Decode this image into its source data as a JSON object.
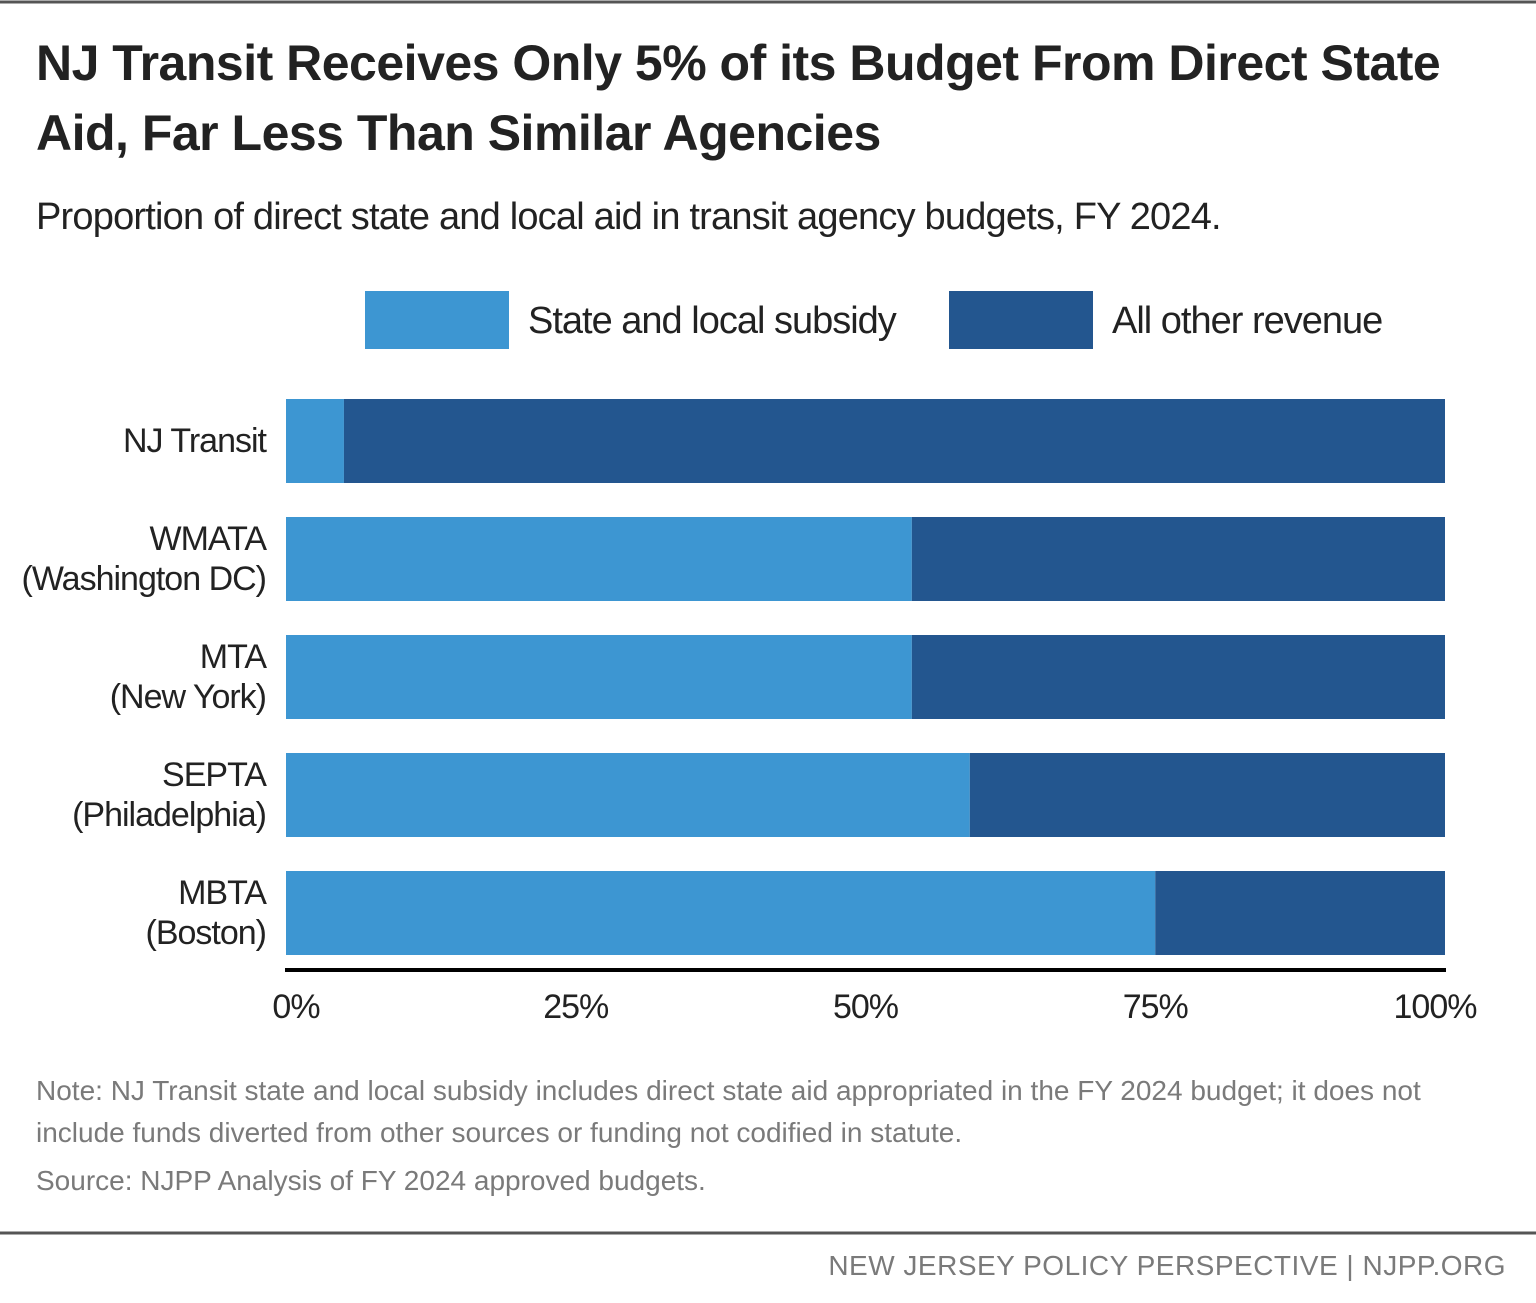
{
  "chart_data": {
    "type": "stacked-barh",
    "title": "NJ Transit Receives Only 5% of its Budget From Direct State Aid, Far Less Than Similar Agencies",
    "subtitle": "Proportion of direct state and local aid in transit agency budgets, FY 2024.",
    "categories": [
      "NJ Transit",
      "WMATA\n(Washington DC)",
      "MTA\n(New York)",
      "SEPTA\n(Philadelphia)",
      "MBTA\n(Boston)"
    ],
    "series": [
      {
        "name": "State and local subsidy",
        "color": "#3d96d2",
        "values": [
          5,
          54,
          54,
          59,
          75
        ]
      },
      {
        "name": "All other revenue",
        "color": "#23568f",
        "values": [
          95,
          46,
          46,
          41,
          25
        ]
      }
    ],
    "xlim": [
      0,
      100
    ],
    "xticks": [
      {
        "value": 0,
        "label": "0%"
      },
      {
        "value": 25,
        "label": "25%"
      },
      {
        "value": 50,
        "label": "50%"
      },
      {
        "value": 75,
        "label": "75%"
      },
      {
        "value": 100,
        "label": "100%"
      }
    ],
    "legend": "top",
    "note": "Note: NJ Transit state and local subsidy includes direct state aid appropriated in the FY 2024 budget; it does not include funds diverted from other sources or funding not codified in statute.",
    "source": "Source: NJPP Analysis of FY 2024 approved budgets.",
    "footer": "NEW JERSEY POLICY PERSPECTIVE | NJPP.ORG"
  }
}
